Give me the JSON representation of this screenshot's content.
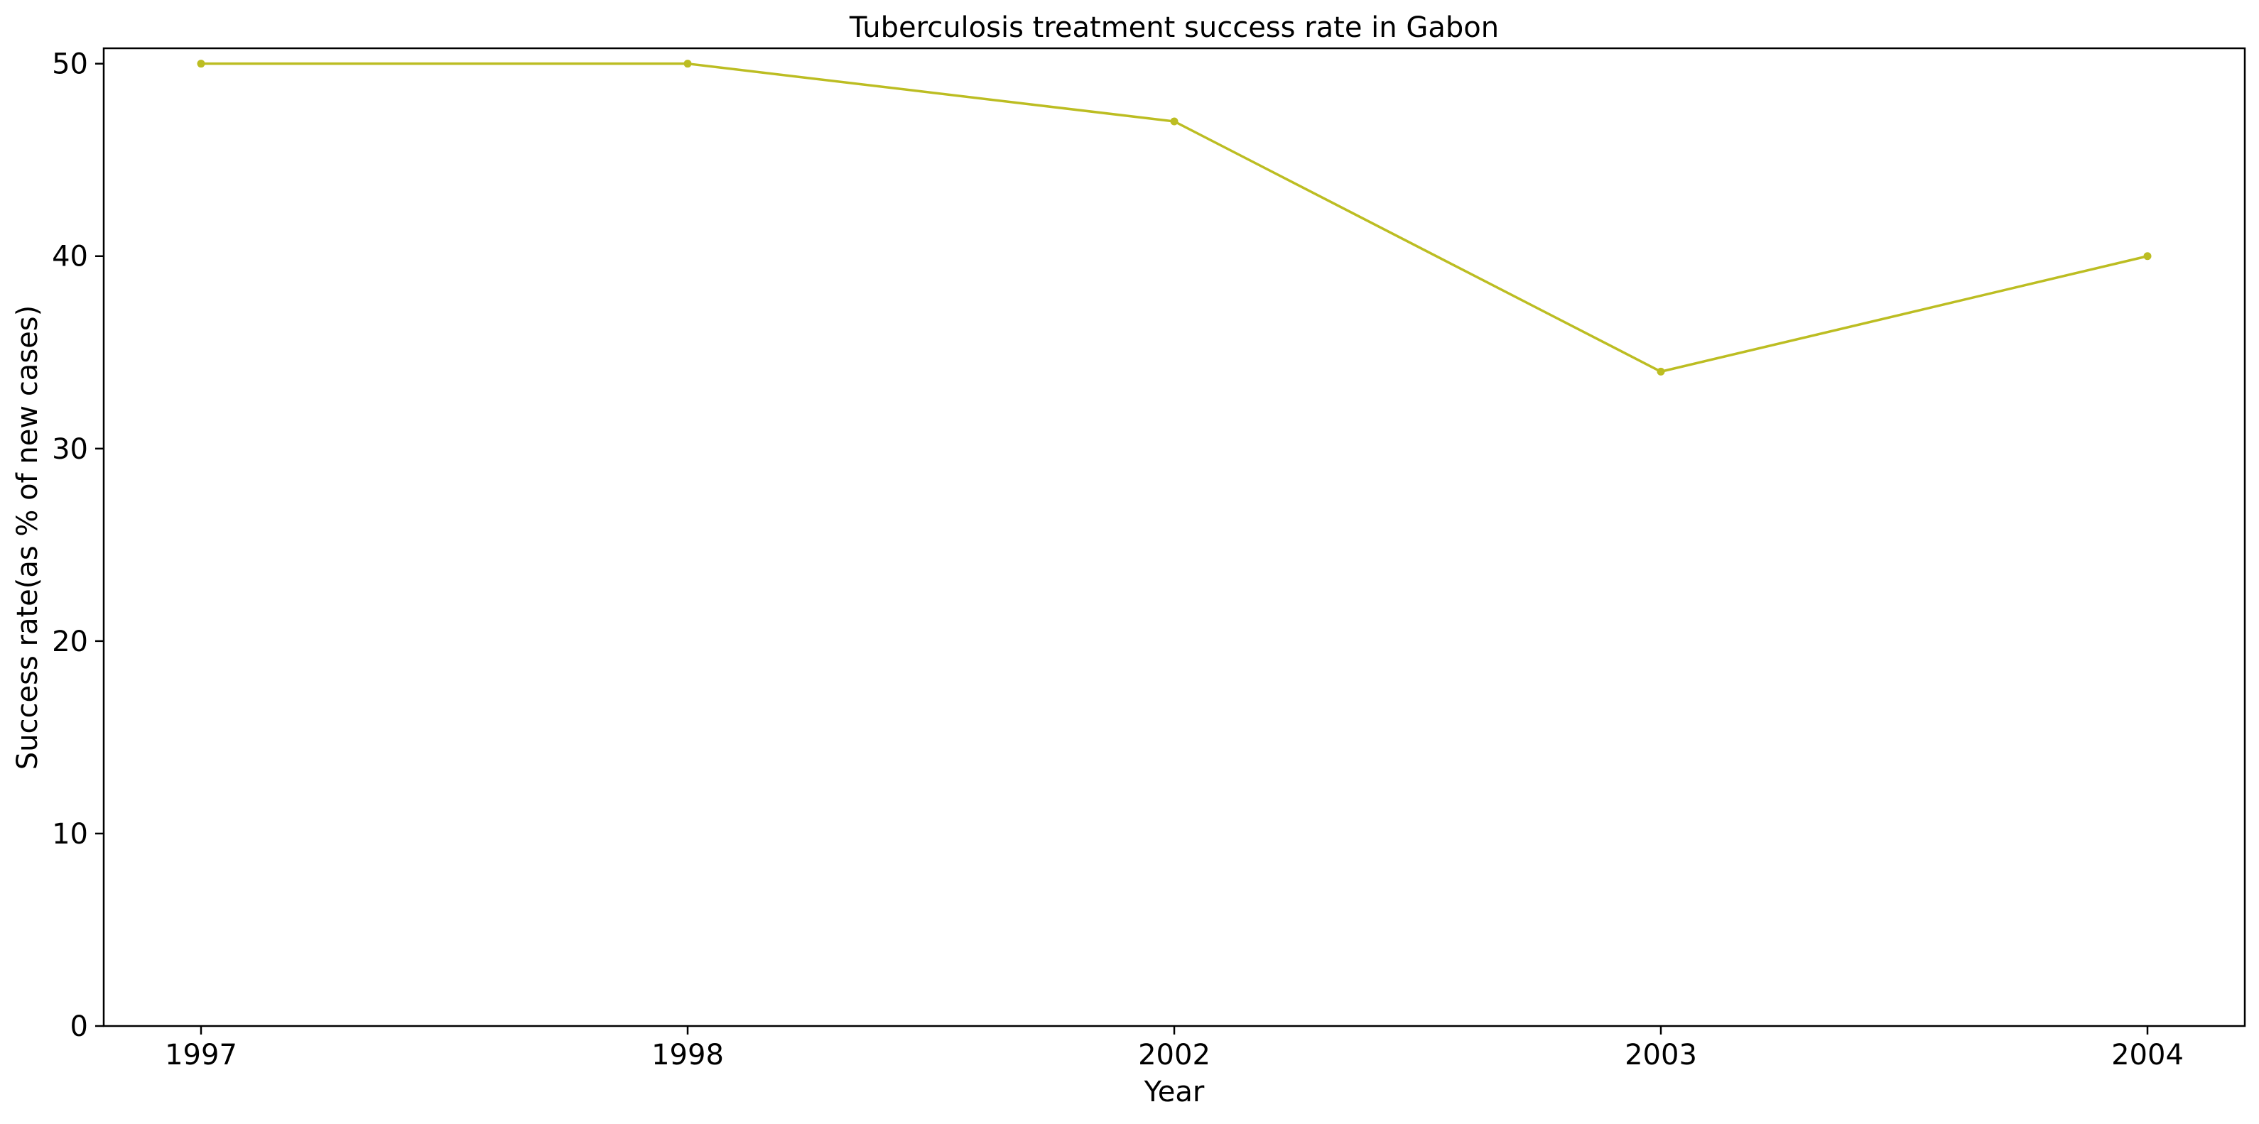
{
  "chart_data": {
    "type": "line",
    "title": "Tuberculosis treatment success rate in Gabon",
    "xlabel": "Year",
    "ylabel": "Success rate(as % of new cases)",
    "categories": [
      "1997",
      "1998",
      "2002",
      "2003",
      "2004"
    ],
    "series": [
      {
        "values": [
          50,
          50,
          47,
          34,
          40
        ],
        "color": "#bcbd22"
      }
    ],
    "ylim": [
      0,
      50.8
    ],
    "yticks": [
      0,
      10,
      20,
      30,
      40,
      50
    ],
    "grid": false,
    "legend": "none",
    "marker": "point"
  }
}
